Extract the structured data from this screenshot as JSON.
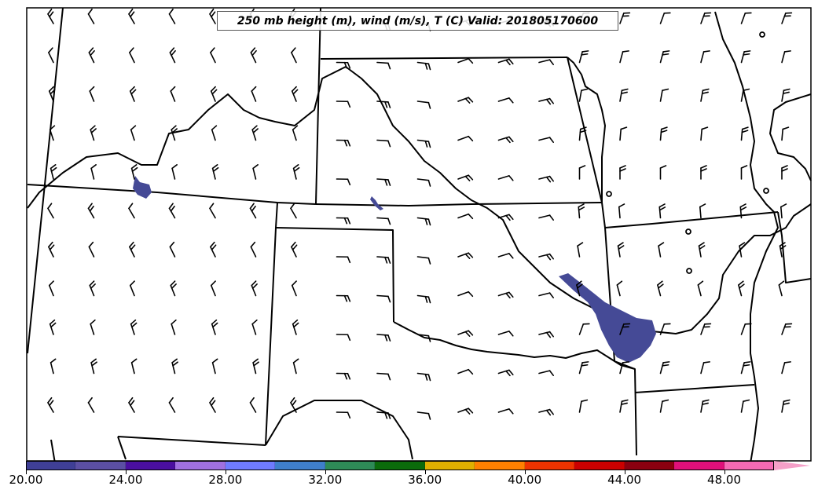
{
  "map": {
    "title": "250 mb height (m), wind (m/s), T (C) Valid: 201805170600",
    "region": "Southern Plains / South-Central United States",
    "station_symbol": "calm-wind-circle",
    "wind_symbol": "wind-barb",
    "shading_color": "#454a96",
    "features": [
      "state-borders",
      "coastline-rivers",
      "wind-barbs",
      "temperature-shading"
    ]
  },
  "colorbar": {
    "min": 20.0,
    "max": 50.0,
    "interval": 2.0,
    "colors": [
      "#3f3f96",
      "#5b4fa3",
      "#4a0fa0",
      "#a070e0",
      "#6f7bff",
      "#3f7fcc",
      "#2e8b57",
      "#0b6b0b",
      "#e0b000",
      "#ff8000",
      "#ee3300",
      "#cc0000",
      "#8b0010",
      "#e0107a",
      "#f56ab4"
    ],
    "extend_color": "#f5a0c8",
    "tick_labels": [
      "20.00",
      "24.00",
      "28.00",
      "32.00",
      "36.00",
      "40.00",
      "44.00",
      "48.00"
    ]
  }
}
